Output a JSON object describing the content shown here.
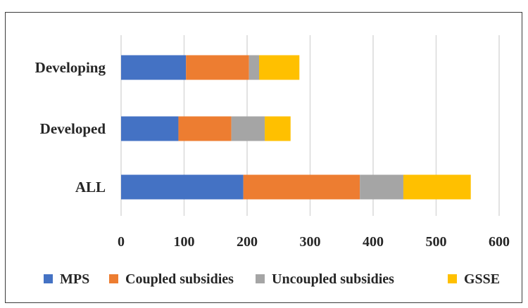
{
  "chart_data": {
    "type": "bar",
    "orientation": "horizontal",
    "stacked": true,
    "categories": [
      "Developing",
      "Developed",
      "ALL"
    ],
    "series": [
      {
        "name": "MPS",
        "color": "#4472C4",
        "values": [
          103,
          91,
          194
        ]
      },
      {
        "name": "Coupled subsidies",
        "color": "#ED7D31",
        "values": [
          100,
          84,
          185
        ]
      },
      {
        "name": "Uncoupled subsidies",
        "color": "#A5A5A5",
        "values": [
          16,
          53,
          69
        ]
      },
      {
        "name": "GSSE",
        "color": "#FFC000",
        "values": [
          64,
          41,
          107
        ]
      }
    ],
    "xlim": [
      0,
      600
    ],
    "xticks": [
      "0",
      "100",
      "200",
      "300",
      "400",
      "500",
      "600"
    ],
    "grid": true,
    "legend": "bottom",
    "title": "",
    "xlabel": "",
    "ylabel": ""
  }
}
